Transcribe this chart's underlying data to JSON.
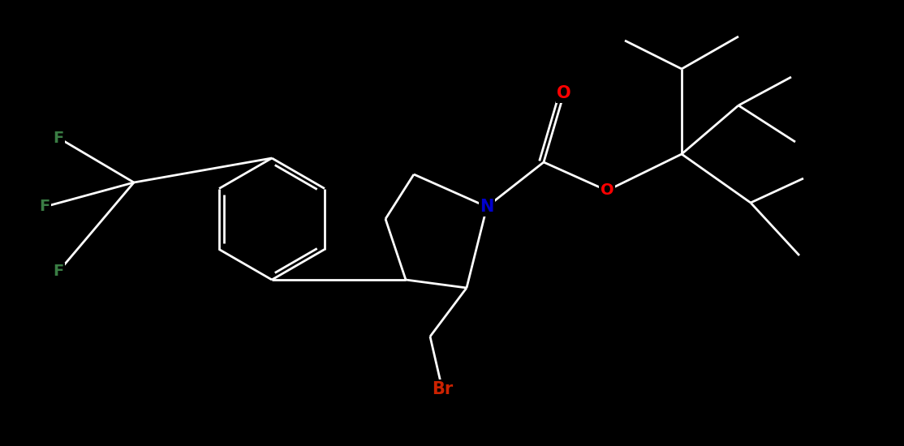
{
  "background_color": "#000000",
  "bond_color": "#ffffff",
  "atom_colors": {
    "N": "#0000cd",
    "O": "#ff0000",
    "F": "#3a7d44",
    "Br": "#cc2200",
    "C": "#ffffff"
  },
  "figsize": [
    11.14,
    5.5
  ],
  "dpi": 100
}
